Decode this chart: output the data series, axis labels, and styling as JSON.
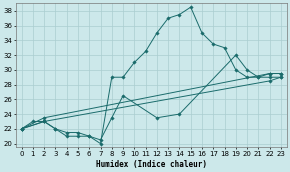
{
  "title": "",
  "xlabel": "Humidex (Indice chaleur)",
  "ylabel": "",
  "background_color": "#cce8ea",
  "grid_color": "#aacdd0",
  "line_color": "#1a6b6b",
  "xlim": [
    -0.5,
    23.5
  ],
  "ylim": [
    19.5,
    39
  ],
  "xticks": [
    0,
    1,
    2,
    3,
    4,
    5,
    6,
    7,
    8,
    9,
    10,
    11,
    12,
    13,
    14,
    15,
    16,
    17,
    18,
    19,
    20,
    21,
    22,
    23
  ],
  "yticks": [
    20,
    22,
    24,
    26,
    28,
    30,
    32,
    34,
    36,
    38
  ],
  "line1_x": [
    0,
    1,
    2,
    3,
    4,
    5,
    6,
    7,
    8,
    9,
    10,
    11,
    12,
    13,
    14,
    15,
    16,
    17,
    18,
    19,
    20,
    21,
    22,
    23
  ],
  "line1_y": [
    22,
    23,
    23,
    22,
    21,
    21,
    21,
    20,
    29,
    29,
    31,
    32.5,
    35,
    37,
    37.5,
    38.5,
    35,
    33.5,
    33,
    30,
    29,
    29,
    29,
    29
  ],
  "line2_x": [
    0,
    2,
    3,
    4,
    5,
    6,
    7,
    8,
    9,
    12,
    14,
    19,
    20,
    21,
    22,
    23
  ],
  "line2_y": [
    22,
    23,
    22,
    21.5,
    21.5,
    21,
    20.5,
    23.5,
    26.5,
    23.5,
    24,
    32,
    30,
    29,
    29.5,
    29.5
  ],
  "line3_x": [
    0,
    2,
    22,
    23
  ],
  "line3_y": [
    22,
    23,
    28.5,
    29
  ],
  "line4_x": [
    0,
    2,
    22,
    23
  ],
  "line4_y": [
    22,
    23.5,
    29.5,
    29.5
  ]
}
